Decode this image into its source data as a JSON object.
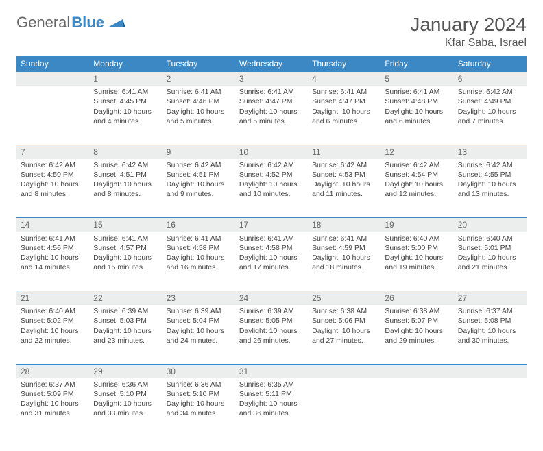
{
  "brand": {
    "part1": "General",
    "part2": "Blue"
  },
  "title": "January 2024",
  "location": "Kfar Saba, Israel",
  "colors": {
    "header_bg": "#3b88c4",
    "header_fg": "#ffffff",
    "daynum_bg": "#eceded",
    "daynum_fg": "#666666",
    "text": "#444444",
    "rule": "#3b88c4"
  },
  "weekdays": [
    "Sunday",
    "Monday",
    "Tuesday",
    "Wednesday",
    "Thursday",
    "Friday",
    "Saturday"
  ],
  "weeks": [
    {
      "nums": [
        "",
        "1",
        "2",
        "3",
        "4",
        "5",
        "6"
      ],
      "cells": [
        null,
        {
          "sunrise": "Sunrise: 6:41 AM",
          "sunset": "Sunset: 4:45 PM",
          "day1": "Daylight: 10 hours",
          "day2": "and 4 minutes."
        },
        {
          "sunrise": "Sunrise: 6:41 AM",
          "sunset": "Sunset: 4:46 PM",
          "day1": "Daylight: 10 hours",
          "day2": "and 5 minutes."
        },
        {
          "sunrise": "Sunrise: 6:41 AM",
          "sunset": "Sunset: 4:47 PM",
          "day1": "Daylight: 10 hours",
          "day2": "and 5 minutes."
        },
        {
          "sunrise": "Sunrise: 6:41 AM",
          "sunset": "Sunset: 4:47 PM",
          "day1": "Daylight: 10 hours",
          "day2": "and 6 minutes."
        },
        {
          "sunrise": "Sunrise: 6:41 AM",
          "sunset": "Sunset: 4:48 PM",
          "day1": "Daylight: 10 hours",
          "day2": "and 6 minutes."
        },
        {
          "sunrise": "Sunrise: 6:42 AM",
          "sunset": "Sunset: 4:49 PM",
          "day1": "Daylight: 10 hours",
          "day2": "and 7 minutes."
        }
      ]
    },
    {
      "nums": [
        "7",
        "8",
        "9",
        "10",
        "11",
        "12",
        "13"
      ],
      "cells": [
        {
          "sunrise": "Sunrise: 6:42 AM",
          "sunset": "Sunset: 4:50 PM",
          "day1": "Daylight: 10 hours",
          "day2": "and 8 minutes."
        },
        {
          "sunrise": "Sunrise: 6:42 AM",
          "sunset": "Sunset: 4:51 PM",
          "day1": "Daylight: 10 hours",
          "day2": "and 8 minutes."
        },
        {
          "sunrise": "Sunrise: 6:42 AM",
          "sunset": "Sunset: 4:51 PM",
          "day1": "Daylight: 10 hours",
          "day2": "and 9 minutes."
        },
        {
          "sunrise": "Sunrise: 6:42 AM",
          "sunset": "Sunset: 4:52 PM",
          "day1": "Daylight: 10 hours",
          "day2": "and 10 minutes."
        },
        {
          "sunrise": "Sunrise: 6:42 AM",
          "sunset": "Sunset: 4:53 PM",
          "day1": "Daylight: 10 hours",
          "day2": "and 11 minutes."
        },
        {
          "sunrise": "Sunrise: 6:42 AM",
          "sunset": "Sunset: 4:54 PM",
          "day1": "Daylight: 10 hours",
          "day2": "and 12 minutes."
        },
        {
          "sunrise": "Sunrise: 6:42 AM",
          "sunset": "Sunset: 4:55 PM",
          "day1": "Daylight: 10 hours",
          "day2": "and 13 minutes."
        }
      ]
    },
    {
      "nums": [
        "14",
        "15",
        "16",
        "17",
        "18",
        "19",
        "20"
      ],
      "cells": [
        {
          "sunrise": "Sunrise: 6:41 AM",
          "sunset": "Sunset: 4:56 PM",
          "day1": "Daylight: 10 hours",
          "day2": "and 14 minutes."
        },
        {
          "sunrise": "Sunrise: 6:41 AM",
          "sunset": "Sunset: 4:57 PM",
          "day1": "Daylight: 10 hours",
          "day2": "and 15 minutes."
        },
        {
          "sunrise": "Sunrise: 6:41 AM",
          "sunset": "Sunset: 4:58 PM",
          "day1": "Daylight: 10 hours",
          "day2": "and 16 minutes."
        },
        {
          "sunrise": "Sunrise: 6:41 AM",
          "sunset": "Sunset: 4:58 PM",
          "day1": "Daylight: 10 hours",
          "day2": "and 17 minutes."
        },
        {
          "sunrise": "Sunrise: 6:41 AM",
          "sunset": "Sunset: 4:59 PM",
          "day1": "Daylight: 10 hours",
          "day2": "and 18 minutes."
        },
        {
          "sunrise": "Sunrise: 6:40 AM",
          "sunset": "Sunset: 5:00 PM",
          "day1": "Daylight: 10 hours",
          "day2": "and 19 minutes."
        },
        {
          "sunrise": "Sunrise: 6:40 AM",
          "sunset": "Sunset: 5:01 PM",
          "day1": "Daylight: 10 hours",
          "day2": "and 21 minutes."
        }
      ]
    },
    {
      "nums": [
        "21",
        "22",
        "23",
        "24",
        "25",
        "26",
        "27"
      ],
      "cells": [
        {
          "sunrise": "Sunrise: 6:40 AM",
          "sunset": "Sunset: 5:02 PM",
          "day1": "Daylight: 10 hours",
          "day2": "and 22 minutes."
        },
        {
          "sunrise": "Sunrise: 6:39 AM",
          "sunset": "Sunset: 5:03 PM",
          "day1": "Daylight: 10 hours",
          "day2": "and 23 minutes."
        },
        {
          "sunrise": "Sunrise: 6:39 AM",
          "sunset": "Sunset: 5:04 PM",
          "day1": "Daylight: 10 hours",
          "day2": "and 24 minutes."
        },
        {
          "sunrise": "Sunrise: 6:39 AM",
          "sunset": "Sunset: 5:05 PM",
          "day1": "Daylight: 10 hours",
          "day2": "and 26 minutes."
        },
        {
          "sunrise": "Sunrise: 6:38 AM",
          "sunset": "Sunset: 5:06 PM",
          "day1": "Daylight: 10 hours",
          "day2": "and 27 minutes."
        },
        {
          "sunrise": "Sunrise: 6:38 AM",
          "sunset": "Sunset: 5:07 PM",
          "day1": "Daylight: 10 hours",
          "day2": "and 29 minutes."
        },
        {
          "sunrise": "Sunrise: 6:37 AM",
          "sunset": "Sunset: 5:08 PM",
          "day1": "Daylight: 10 hours",
          "day2": "and 30 minutes."
        }
      ]
    },
    {
      "nums": [
        "28",
        "29",
        "30",
        "31",
        "",
        "",
        ""
      ],
      "cells": [
        {
          "sunrise": "Sunrise: 6:37 AM",
          "sunset": "Sunset: 5:09 PM",
          "day1": "Daylight: 10 hours",
          "day2": "and 31 minutes."
        },
        {
          "sunrise": "Sunrise: 6:36 AM",
          "sunset": "Sunset: 5:10 PM",
          "day1": "Daylight: 10 hours",
          "day2": "and 33 minutes."
        },
        {
          "sunrise": "Sunrise: 6:36 AM",
          "sunset": "Sunset: 5:10 PM",
          "day1": "Daylight: 10 hours",
          "day2": "and 34 minutes."
        },
        {
          "sunrise": "Sunrise: 6:35 AM",
          "sunset": "Sunset: 5:11 PM",
          "day1": "Daylight: 10 hours",
          "day2": "and 36 minutes."
        },
        null,
        null,
        null
      ]
    }
  ]
}
